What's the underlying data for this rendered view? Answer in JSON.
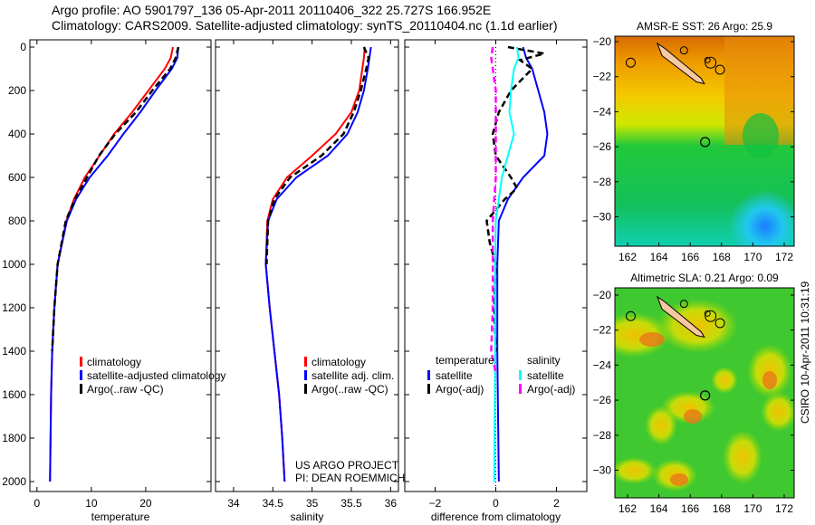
{
  "title_line1": "Argo profile: AO 5901797_136 05-Apr-2011 20110406_322 25.727S 166.952E",
  "title_line2": "Climatology: CARS2009. Satellite-adjusted climatology: synTS_20110404.nc (1.1d earlier)",
  "footer_credit": "CSIRO 10-Apr-2011 10:31:19",
  "project_line1": "US ARGO PROJECT",
  "project_line2": "PI: DEAN ROEMMICH",
  "colors": {
    "climatology": "#ff0000",
    "satellite": "#0000ff",
    "argo": "#000000",
    "sal_satellite": "#00ffff",
    "sal_argo": "#ff00ff"
  },
  "chart_data": [
    {
      "type": "line",
      "xlabel": "temperature",
      "xlim": [
        -1.3,
        32
      ],
      "ylim": [
        0,
        2040
      ],
      "yticks": [
        0,
        200,
        400,
        600,
        800,
        1000,
        1200,
        1400,
        1600,
        1800,
        2000
      ],
      "xticks": [
        "0",
        "10",
        "20"
      ],
      "legend": [
        "climatology",
        "satellite-adjusted climatology",
        "Argo(..raw -QC)"
      ],
      "series": [
        {
          "name": "climatology",
          "color": "#ff0000",
          "depth": [
            0,
            50,
            100,
            200,
            300,
            400,
            500,
            600,
            700,
            800,
            1000,
            1200,
            1400,
            1600,
            1800,
            2000
          ],
          "values": [
            25,
            24.6,
            23.5,
            20.5,
            17.5,
            14.2,
            11.5,
            8.8,
            6.8,
            5.4,
            3.8,
            3.2,
            2.8,
            2.6,
            2.5,
            2.4
          ]
        },
        {
          "name": "satellite-adjusted climatology",
          "color": "#0000ff",
          "depth": [
            0,
            50,
            100,
            200,
            300,
            400,
            500,
            600,
            700,
            800,
            1000,
            1200,
            1400,
            1600,
            1800,
            2000
          ],
          "values": [
            26,
            25.8,
            24.8,
            21.8,
            19,
            15.9,
            13,
            9.7,
            7.2,
            5.5,
            3.8,
            3.2,
            2.8,
            2.6,
            2.5,
            2.4
          ]
        },
        {
          "name": "Argo(..raw -QC)",
          "color": "#000000",
          "dash": true,
          "depth": [
            0,
            50,
            100,
            200,
            300,
            400,
            500,
            600,
            700,
            800,
            1000,
            1200,
            1400
          ],
          "values": [
            26,
            25.5,
            24.5,
            21.2,
            18.2,
            14.4,
            11.4,
            9.2,
            7,
            5.3,
            3.8,
            3.2,
            2.8
          ]
        }
      ]
    },
    {
      "type": "line",
      "xlabel": "salinity",
      "xlim": [
        33.77,
        36.1
      ],
      "ylim": [
        0,
        2040
      ],
      "xticks": [
        "34",
        "34.5",
        "35",
        "35.5",
        "36"
      ],
      "legend": [
        "climatology",
        "satellite adj. clim.",
        "Argo(..raw -QC)"
      ],
      "series": [
        {
          "name": "climatology",
          "color": "#ff0000",
          "depth": [
            0,
            50,
            100,
            200,
            300,
            400,
            500,
            600,
            700,
            800,
            1000,
            1200,
            1400,
            1600,
            1800,
            2000
          ],
          "values": [
            35.67,
            35.66,
            35.64,
            35.6,
            35.5,
            35.3,
            35.0,
            34.68,
            34.5,
            34.43,
            34.41,
            34.46,
            34.52,
            34.58,
            34.62,
            34.65
          ]
        },
        {
          "name": "satellite adj. clim.",
          "color": "#0000ff",
          "depth": [
            0,
            50,
            100,
            200,
            300,
            400,
            500,
            600,
            700,
            800,
            1000,
            1200,
            1400,
            1600,
            1800,
            2000
          ],
          "values": [
            35.75,
            35.73,
            35.71,
            35.66,
            35.58,
            35.45,
            35.2,
            34.8,
            34.55,
            34.44,
            34.41,
            34.46,
            34.52,
            34.58,
            34.62,
            34.65
          ]
        },
        {
          "name": "Argo(..raw -QC)",
          "color": "#000000",
          "dash": true,
          "depth": [
            0,
            50,
            100,
            200,
            300,
            400,
            500,
            600,
            700,
            800,
            1000
          ],
          "values": [
            35.66,
            35.72,
            35.69,
            35.62,
            35.53,
            35.4,
            35.12,
            34.72,
            34.52,
            34.44,
            34.42
          ]
        }
      ]
    },
    {
      "type": "line",
      "xlabel": "difference from climatology",
      "xlim": [
        -3,
        3
      ],
      "ylim": [
        0,
        2040
      ],
      "xticks": [
        "-2",
        "0",
        "2"
      ],
      "legend_temperature_title": "temperature",
      "legend_salinity_title": "salinity",
      "legend": [
        "satellite",
        "Argo(-adj)",
        "satellite",
        "Argo(-adj)"
      ],
      "series": [
        {
          "name": "temperature satellite",
          "color": "#0000ff",
          "depth": [
            0,
            50,
            100,
            200,
            300,
            400,
            500,
            600,
            700,
            800,
            1000,
            1400,
            2000
          ],
          "values": [
            0.9,
            1.0,
            1.2,
            1.4,
            1.6,
            1.7,
            1.6,
            0.9,
            0.4,
            0.1,
            0.05,
            0.05,
            0.1
          ]
        },
        {
          "name": "temperature Argo(-adj)",
          "color": "#000000",
          "dash": true,
          "depth": [
            0,
            30,
            60,
            100,
            200,
            300,
            400,
            500,
            600,
            650,
            700,
            800,
            900,
            1000,
            1200,
            1400
          ],
          "values": [
            0.4,
            1.6,
            0.8,
            1.2,
            0.5,
            0.1,
            -0.1,
            0,
            0.5,
            0.7,
            0.3,
            -0.3,
            -0.2,
            0,
            -0.05,
            0
          ]
        },
        {
          "name": "salinity satellite",
          "color": "#00ffff",
          "depth": [
            0,
            50,
            100,
            200,
            300,
            400,
            500,
            600,
            800,
            1000,
            1400,
            2000
          ],
          "values": [
            0.7,
            0.75,
            0.6,
            0.5,
            0.45,
            0.6,
            0.4,
            0.2,
            0,
            -0.02,
            -0.02,
            -0.05
          ]
        },
        {
          "name": "salinity Argo(-adj)",
          "color": "#ff00ff",
          "dash": true,
          "depth": [
            0,
            50,
            100,
            200,
            400,
            600,
            800,
            1000,
            1200,
            1400,
            1500
          ],
          "values": [
            -0.1,
            -0.15,
            -0.1,
            0,
            0,
            0,
            -0.1,
            -0.1,
            -0.1,
            -0.15,
            0
          ]
        }
      ]
    },
    {
      "type": "heatmap",
      "title": "AMSR-E SST: 26 Argo: 25.9",
      "xticks": [
        "162",
        "164",
        "166",
        "168",
        "170",
        "172"
      ],
      "yticks": [
        "-20",
        "-22",
        "-24",
        "-26",
        "-28",
        "-30"
      ],
      "argo_lon": 166.95,
      "argo_lat": -25.73
    },
    {
      "type": "heatmap",
      "title": "Altimetric SLA: 0.21 Argo: 0.09",
      "xticks": [
        "162",
        "164",
        "166",
        "168",
        "170",
        "172"
      ],
      "yticks": [
        "-20",
        "-22",
        "-24",
        "-26",
        "-28",
        "-30"
      ],
      "argo_lon": 166.95,
      "argo_lat": -25.73
    }
  ]
}
